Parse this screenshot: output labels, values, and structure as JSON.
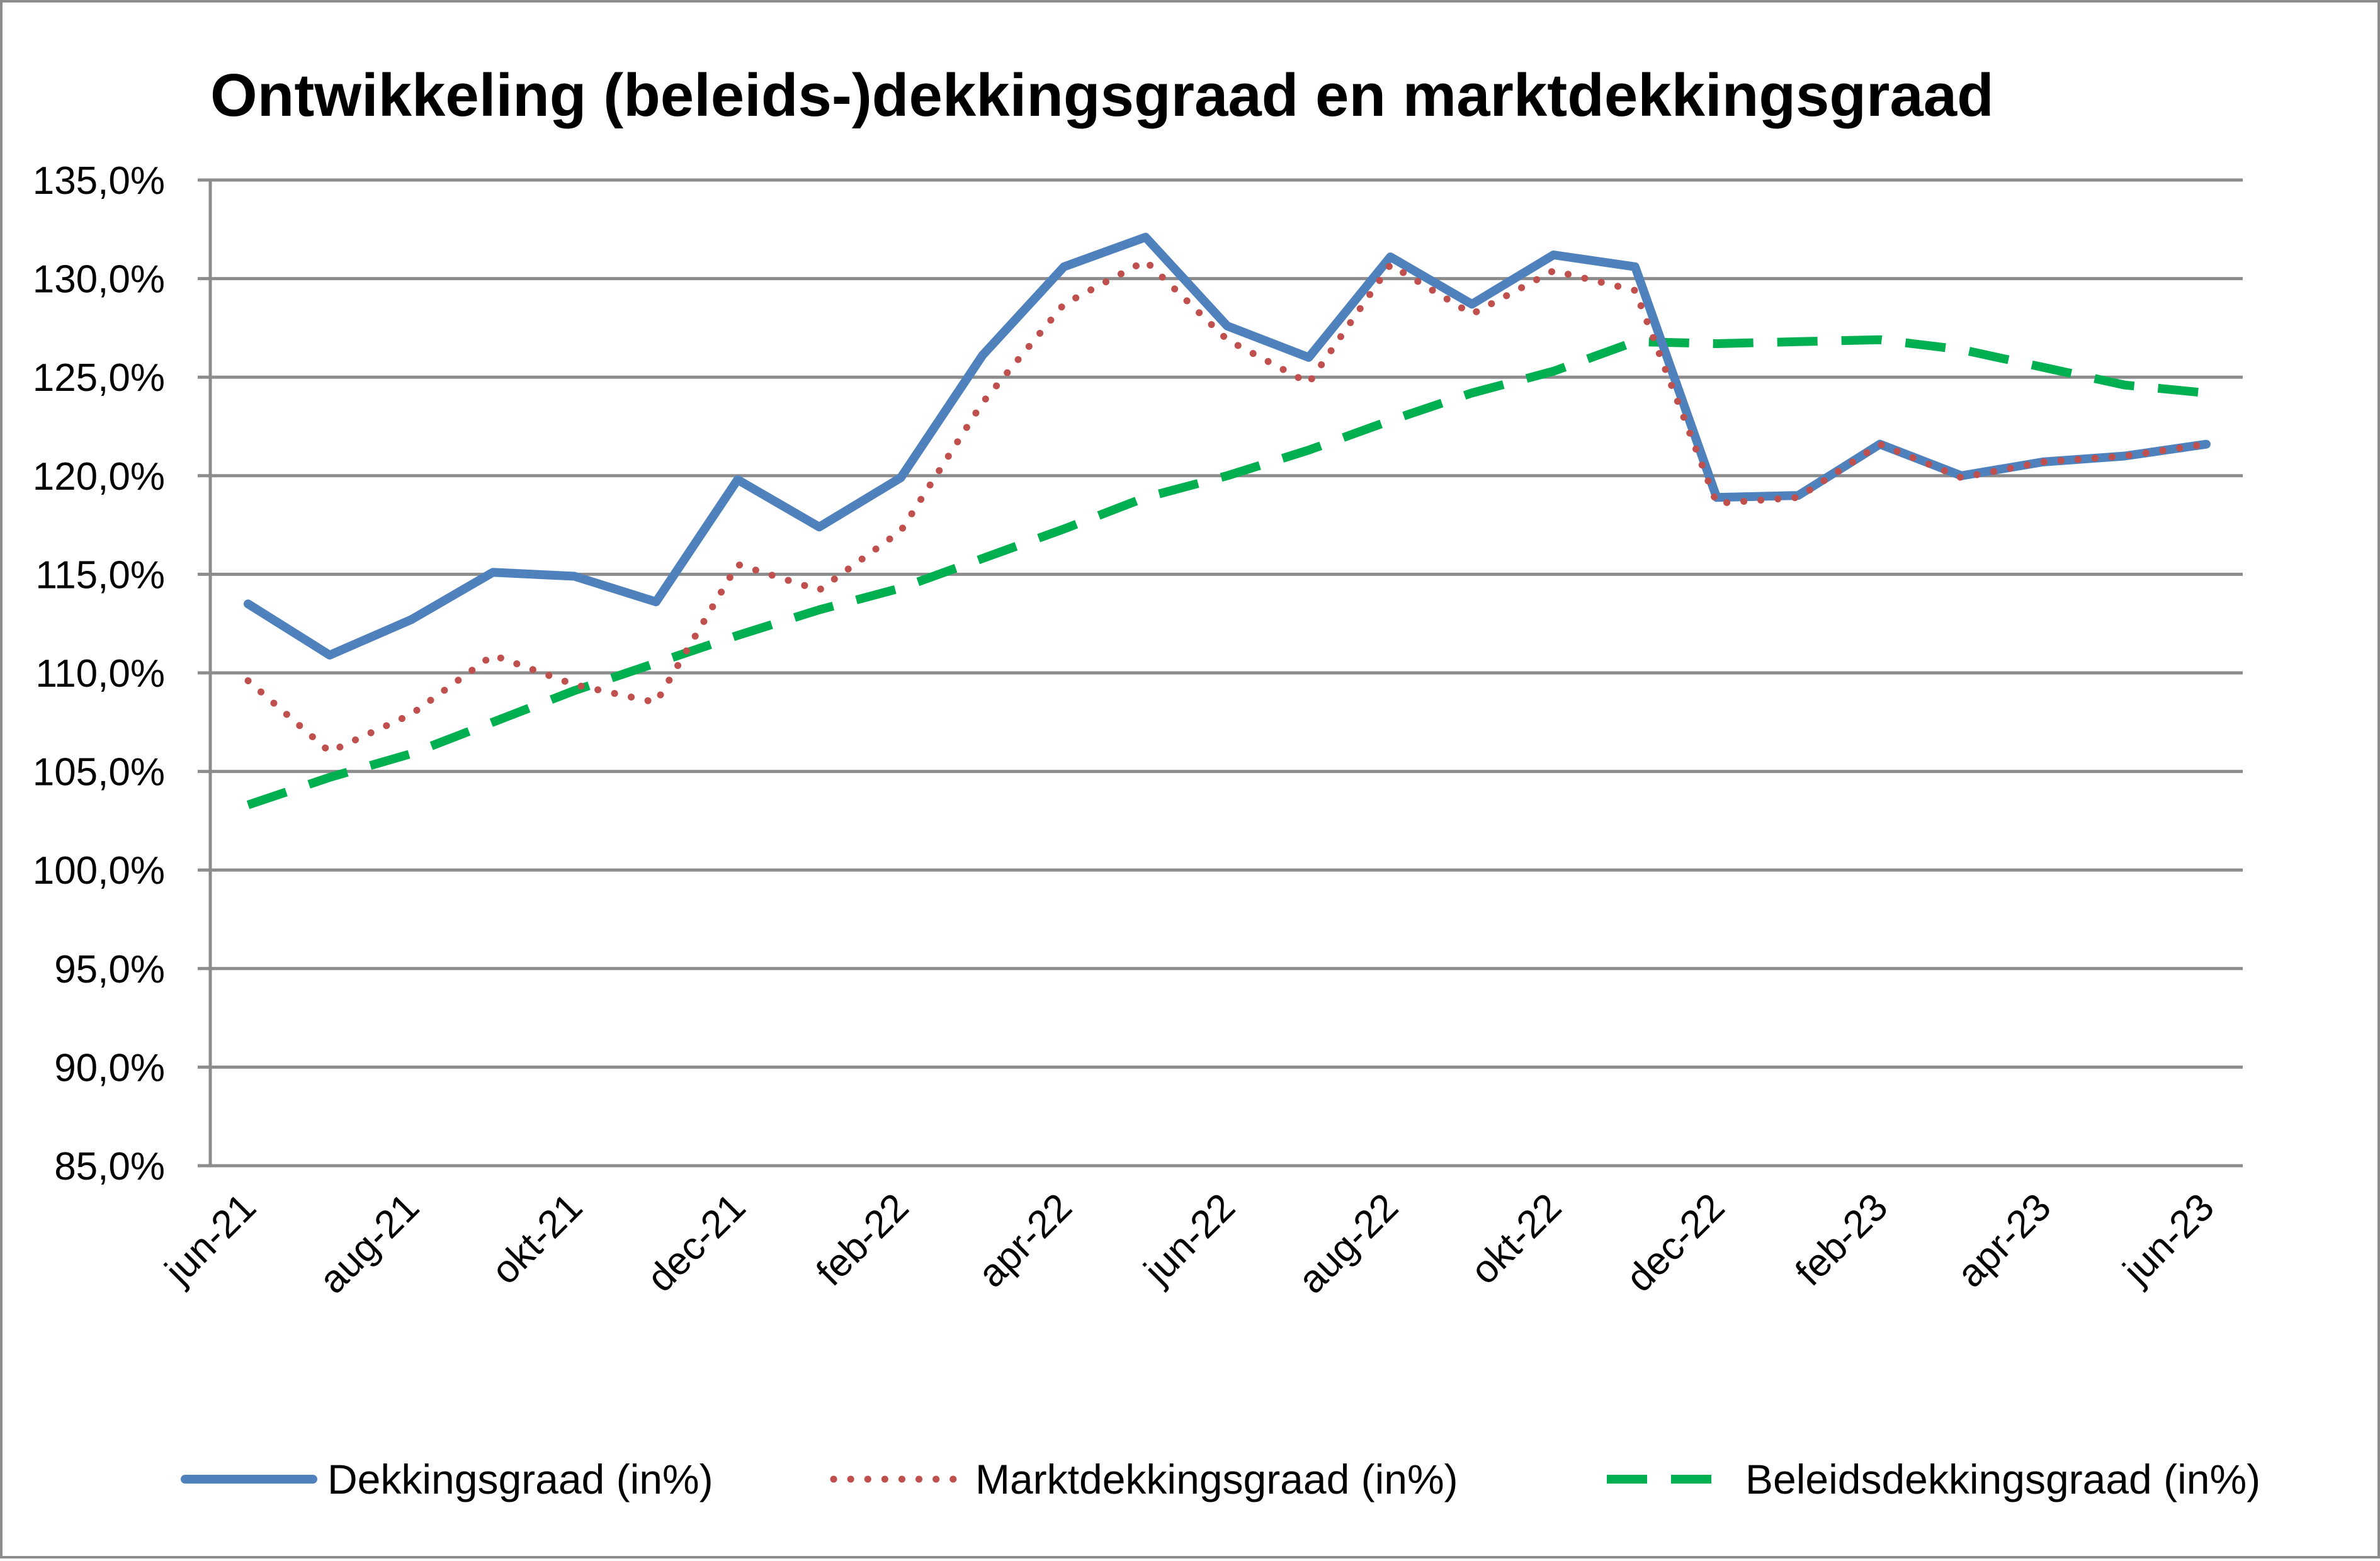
{
  "chart_data": {
    "type": "line",
    "title": "Ontwikkeling (beleids-)dekkingsgraad en marktdekkingsgraad",
    "xlabel": "",
    "ylabel": "",
    "ylim": [
      85,
      135
    ],
    "y_ticks": [
      "85,0%",
      "90,0%",
      "95,0%",
      "100,0%",
      "105,0%",
      "110,0%",
      "115,0%",
      "120,0%",
      "125,0%",
      "130,0%",
      "135,0%"
    ],
    "categories": [
      "jun-21",
      "jul-21",
      "aug-21",
      "sep-21",
      "okt-21",
      "nov-21",
      "dec-21",
      "jan-22",
      "feb-22",
      "mrt-22",
      "apr-22",
      "mei-22",
      "jun-22",
      "jul-22",
      "aug-22",
      "sep-22",
      "okt-22",
      "nov-22",
      "dec-22",
      "jan-23",
      "feb-23",
      "mrt-23",
      "apr-23",
      "mei-23",
      "jun-23"
    ],
    "tick_labels": [
      "jun-21",
      "",
      "aug-21",
      "",
      "okt-21",
      "",
      "dec-21",
      "",
      "feb-22",
      "",
      "apr-22",
      "",
      "jun-22",
      "",
      "aug-22",
      "",
      "okt-22",
      "",
      "dec-22",
      "",
      "feb-23",
      "",
      "apr-23",
      "",
      "jun-23"
    ],
    "grid": true,
    "legend_position": "bottom",
    "series": [
      {
        "name": "Dekkingsgraad (in%)",
        "color": "#4f81bd",
        "style": "solid",
        "values": [
          113.5,
          110.9,
          112.7,
          115.1,
          114.9,
          113.6,
          119.8,
          117.4,
          119.9,
          126.1,
          130.6,
          132.1,
          127.6,
          126.0,
          131.1,
          128.7,
          131.2,
          130.6,
          118.9,
          119.0,
          121.6,
          120.0,
          120.7,
          121.0,
          121.6
        ]
      },
      {
        "name": "Marktdekkingsgraad (in%)",
        "color": "#c0504d",
        "style": "dotted",
        "values": [
          109.6,
          106.0,
          107.9,
          110.9,
          109.4,
          108.5,
          115.5,
          114.2,
          117.2,
          123.7,
          128.7,
          130.9,
          126.9,
          124.7,
          130.7,
          128.2,
          130.4,
          129.4,
          118.6,
          118.9,
          121.6,
          119.9,
          120.7,
          121.0,
          121.6
        ]
      },
      {
        "name": "Beleidsdekkingsgraad (in%)",
        "color": "#00b050",
        "style": "dashed",
        "values": [
          103.3,
          104.7,
          105.9,
          107.5,
          109.1,
          110.5,
          111.9,
          113.2,
          114.3,
          115.8,
          117.3,
          118.9,
          120.0,
          121.3,
          122.8,
          124.2,
          125.3,
          126.8,
          126.7,
          126.8,
          126.9,
          126.4,
          125.5,
          124.6,
          124.2
        ]
      }
    ]
  }
}
